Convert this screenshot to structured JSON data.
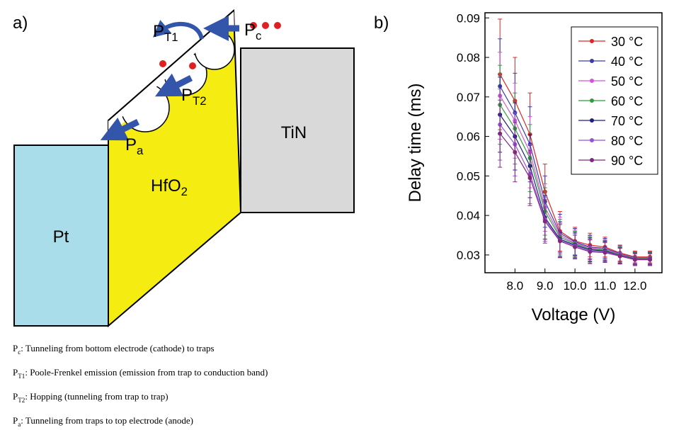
{
  "panel_a": {
    "label": "a)",
    "layers": {
      "left": "Pt",
      "middle": {
        "main": "HfO",
        "sub": "2"
      },
      "right": "TiN"
    },
    "processes": [
      {
        "main": "P",
        "sub": "c"
      },
      {
        "main": "P",
        "sub": "T1"
      },
      {
        "main": "P",
        "sub": "T2"
      },
      {
        "main": "P",
        "sub": "a"
      }
    ]
  },
  "captions": [
    {
      "main": "P",
      "sub": "c",
      "text": ": Tunneling from bottom electrode (cathode) to traps"
    },
    {
      "main": "P",
      "sub": "T1",
      "text": ": Poole-Frenkel emission (emission from trap to conduction band)"
    },
    {
      "main": "P",
      "sub": "T2",
      "text": ": Hopping (tunneling from trap to trap)"
    },
    {
      "main": "P",
      "sub": "a",
      "text": ": Tunneling from traps to top electrode (anode)"
    }
  ],
  "chart_data": {
    "type": "line",
    "panel_label": "b)",
    "x_label": "Voltage (V)",
    "y_label": "Delay time (ms)",
    "x": [
      7.5,
      8.0,
      8.5,
      9.0,
      9.5,
      10.0,
      10.5,
      11.0,
      11.5,
      12.0,
      12.5
    ],
    "xlim": [
      7.0,
      12.9
    ],
    "ylim": [
      0.0255,
      0.0913
    ],
    "xticks": [
      {
        "value": 8,
        "label": "8.0"
      },
      {
        "value": 9,
        "label": "9.0"
      },
      {
        "value": 10,
        "label": "10.0"
      },
      {
        "value": 11,
        "label": "11.0"
      },
      {
        "value": 12,
        "label": "12.0"
      }
    ],
    "yticks": [
      0.03,
      0.04,
      0.05,
      0.06,
      0.07,
      0.08,
      0.09
    ],
    "legend": "upper right",
    "series": [
      {
        "name": "30 °C",
        "color": "#e02424",
        "values": [
          0.0757,
          0.069,
          0.0605,
          0.046,
          0.036,
          0.0335,
          0.0325,
          0.032,
          0.0305,
          0.0295,
          0.0295
        ],
        "errors": [
          0.014,
          0.011,
          0.0105,
          0.007,
          0.005,
          0.0035,
          0.003,
          0.0025,
          0.002,
          0.0015,
          0.0015
        ]
      },
      {
        "name": "40 °C",
        "color": "#3a3aa8",
        "values": [
          0.0727,
          0.066,
          0.058,
          0.0435,
          0.0355,
          0.0333,
          0.032,
          0.0317,
          0.0303,
          0.0293,
          0.0293
        ],
        "errors": [
          0.012,
          0.01,
          0.0095,
          0.0065,
          0.0048,
          0.0034,
          0.003,
          0.0025,
          0.002,
          0.0015,
          0.0015
        ]
      },
      {
        "name": "50 °C",
        "color": "#d454d4",
        "values": [
          0.0703,
          0.064,
          0.056,
          0.042,
          0.035,
          0.033,
          0.0318,
          0.0314,
          0.0302,
          0.0292,
          0.0292
        ],
        "errors": [
          0.011,
          0.0095,
          0.009,
          0.006,
          0.0046,
          0.0033,
          0.003,
          0.0025,
          0.002,
          0.0015,
          0.0015
        ]
      },
      {
        "name": "60 °C",
        "color": "#2e9e3c",
        "values": [
          0.068,
          0.062,
          0.0545,
          0.041,
          0.0345,
          0.0328,
          0.0315,
          0.0312,
          0.03,
          0.0291,
          0.0291
        ],
        "errors": [
          0.01,
          0.009,
          0.0085,
          0.006,
          0.0045,
          0.0032,
          0.003,
          0.0025,
          0.002,
          0.0015,
          0.0015
        ]
      },
      {
        "name": "70 °C",
        "color": "#1e1e80",
        "values": [
          0.0655,
          0.06,
          0.0525,
          0.0395,
          0.034,
          0.0325,
          0.0313,
          0.031,
          0.0299,
          0.029,
          0.029
        ],
        "errors": [
          0.0095,
          0.0085,
          0.008,
          0.0055,
          0.0044,
          0.0032,
          0.003,
          0.0025,
          0.002,
          0.0015,
          0.0015
        ]
      },
      {
        "name": "80 °C",
        "color": "#9652d4",
        "values": [
          0.063,
          0.058,
          0.0505,
          0.039,
          0.0337,
          0.0323,
          0.031,
          0.0308,
          0.0298,
          0.0289,
          0.0289
        ],
        "errors": [
          0.009,
          0.008,
          0.0075,
          0.0055,
          0.0043,
          0.0031,
          0.003,
          0.0025,
          0.002,
          0.0015,
          0.0015
        ]
      },
      {
        "name": "90 °C",
        "color": "#80287e",
        "values": [
          0.0607,
          0.056,
          0.0495,
          0.0385,
          0.0335,
          0.032,
          0.0308,
          0.0306,
          0.0297,
          0.0288,
          0.0288
        ],
        "errors": [
          0.0085,
          0.0075,
          0.007,
          0.0055,
          0.0042,
          0.003,
          0.003,
          0.0025,
          0.002,
          0.0015,
          0.0015
        ]
      }
    ]
  }
}
